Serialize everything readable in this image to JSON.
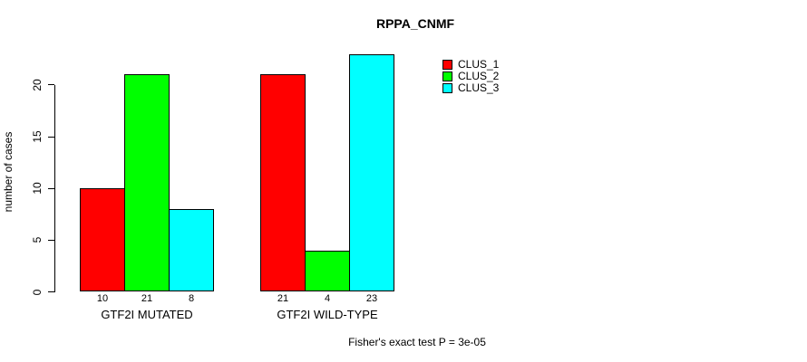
{
  "chart_data": {
    "type": "bar",
    "title": "RPPA_CNMF",
    "xlabel": "",
    "ylabel": "number of cases",
    "categories": [
      "GTF2I MUTATED",
      "GTF2I WILD-TYPE"
    ],
    "series": [
      {
        "name": "CLUS_1",
        "color": "#FF0000",
        "values": [
          10,
          21
        ]
      },
      {
        "name": "CLUS_2",
        "color": "#00FF00",
        "values": [
          21,
          4
        ]
      },
      {
        "name": "CLUS_3",
        "color": "#00FFFF",
        "values": [
          8,
          23
        ]
      }
    ],
    "bar_value_labels": [
      [
        10,
        21,
        8
      ],
      [
        21,
        4,
        23
      ]
    ],
    "yticks": [
      0,
      5,
      10,
      15,
      20
    ],
    "ylim": [
      0,
      23
    ],
    "grid": false,
    "legend_position": "top-right",
    "bar_border_color": "#000000",
    "annotation": "Fisher's exact test P = 3e-05"
  }
}
